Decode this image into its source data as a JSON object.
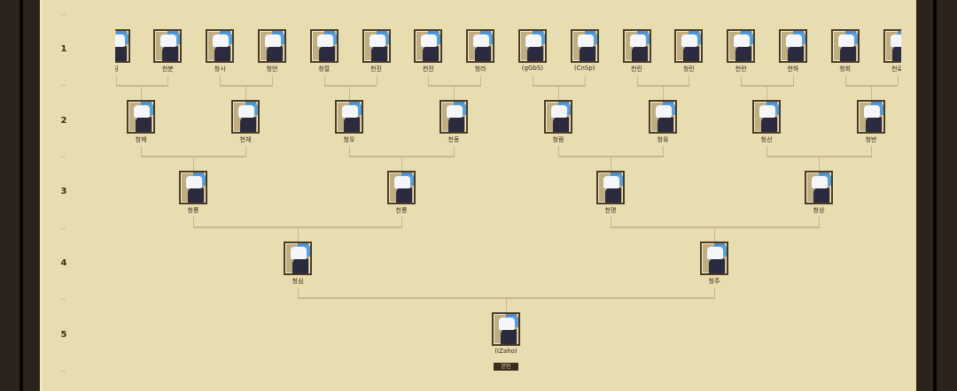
{
  "levels": [
    "1",
    "2",
    "3",
    "4",
    "5"
  ],
  "tree": {
    "level1": [
      "징",
      "천분",
      "청시",
      "청언",
      "청절",
      "천진",
      "천진",
      "청라",
      "(gGbS)",
      "(CnSp)",
      "천린",
      "청린",
      "천련",
      "천하",
      "청회",
      "천로"
    ],
    "level2": [
      "청제",
      "천체",
      "청오",
      "천동",
      "청람",
      "청유",
      "청선",
      "청반"
    ],
    "level3": [
      "청룡",
      "천룡",
      "천명",
      "청상"
    ],
    "level4": [
      "청심",
      "청주"
    ],
    "level5": [
      "(IZaho)"
    ],
    "self_badge": "본인"
  },
  "colors": {
    "background": "#e8ddb0",
    "frame": "#2b231c",
    "connector": "#c8b98c"
  }
}
